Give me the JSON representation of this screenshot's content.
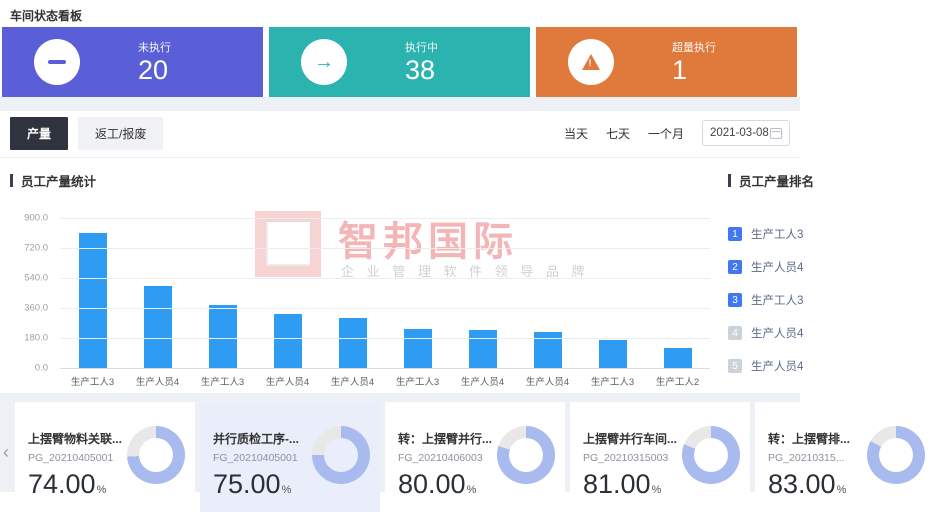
{
  "header": {
    "title": "车间状态看板"
  },
  "stats": [
    {
      "key": "not-executed",
      "label": "未执行",
      "value": "20",
      "color": "#5a5fd7",
      "icon": "minus-circle-icon"
    },
    {
      "key": "executing",
      "label": "执行中",
      "value": "38",
      "color": "#2ab3af",
      "icon": "arrow-right-circle-icon"
    },
    {
      "key": "over-executed",
      "label": "超量执行",
      "value": "1",
      "color": "#e0793c",
      "icon": "warning-triangle-icon"
    }
  ],
  "tabs": [
    {
      "key": "output",
      "label": "产量",
      "active": true
    },
    {
      "key": "rework-scrap",
      "label": "返工/报废",
      "active": false
    }
  ],
  "filters": {
    "ranges": [
      {
        "key": "today",
        "label": "当天"
      },
      {
        "key": "seven-days",
        "label": "七天"
      },
      {
        "key": "one-month",
        "label": "一个月"
      }
    ],
    "date_value": "2021-03-08"
  },
  "chart_data": {
    "type": "bar",
    "title": "员工产量统计",
    "categories": [
      "生产工人3",
      "生产人员4",
      "生产工人3",
      "生产人员4",
      "生产人员4",
      "生产工人3",
      "生产人员4",
      "生产人员4",
      "生产工人3",
      "生产工人2"
    ],
    "values": [
      812,
      492,
      378,
      324,
      300,
      234,
      228,
      216,
      168,
      120
    ],
    "ytick_labels": [
      "900.0",
      "720.0",
      "540.0",
      "360.0",
      "180.0",
      "0.0"
    ],
    "ylim": [
      0,
      900
    ],
    "xlabel": "",
    "ylabel": "",
    "grid": true,
    "legend_position": "none",
    "bar_color": "#2f9cf4"
  },
  "watermark": {
    "brand": "智邦国际",
    "slogan": "企 业 管 理 软 件 领 导 品 牌"
  },
  "ranking": {
    "title": "员工产量排名",
    "items": [
      {
        "rank": "1",
        "name": "生产工人3",
        "top3": true
      },
      {
        "rank": "2",
        "name": "生产人员4",
        "top3": true
      },
      {
        "rank": "3",
        "name": "生产工人3",
        "top3": true
      },
      {
        "rank": "4",
        "name": "生产人员4",
        "top3": false
      },
      {
        "rank": "5",
        "name": "生产人员4",
        "top3": false
      }
    ]
  },
  "carousel": {
    "prev_label": "‹",
    "cards": [
      {
        "title": "上摆臂物料关联...",
        "code": "PG_20210405001",
        "percent": "74.00",
        "unit": "%",
        "highlight": false
      },
      {
        "title": "并行质检工序-...",
        "code": "FG_20210405001",
        "percent": "75.00",
        "unit": "%",
        "highlight": true
      },
      {
        "title": "转：上摆臂并行...",
        "code": "FG_20210406003",
        "percent": "80.00",
        "unit": "%",
        "highlight": false
      },
      {
        "title": "上摆臂并行车间...",
        "code": "PG_20210315003",
        "percent": "81.00",
        "unit": "%",
        "highlight": false
      },
      {
        "title": "转：上摆臂排...",
        "code": "PG_20210315...",
        "percent": "83.00",
        "unit": "%",
        "highlight": false
      }
    ]
  },
  "colors": {
    "card_purple": "#5a5fd7",
    "card_teal": "#2ab3af",
    "card_orange": "#e0793c",
    "bar_blue": "#2f9cf4",
    "rank_badge_blue": "#4277f2",
    "donut_fill": "#a9baee",
    "tab_active_bg": "#2e333d",
    "highlight_card_bg": "#e9eefa",
    "band_gray": "#edf0f4"
  }
}
